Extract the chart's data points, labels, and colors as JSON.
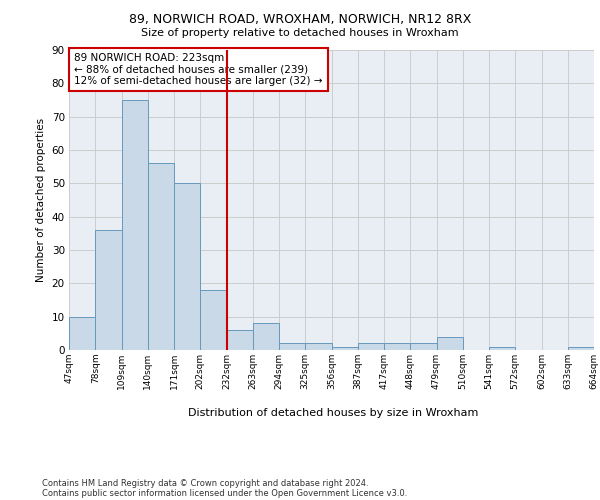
{
  "title1": "89, NORWICH ROAD, WROXHAM, NORWICH, NR12 8RX",
  "title2": "Size of property relative to detached houses in Wroxham",
  "xlabel": "Distribution of detached houses by size in Wroxham",
  "ylabel": "Number of detached properties",
  "bar_values": [
    10,
    36,
    75,
    56,
    50,
    18,
    6,
    8,
    2,
    2,
    1,
    2,
    2,
    2,
    4,
    0,
    1,
    0,
    0,
    1
  ],
  "bin_labels": [
    "47sqm",
    "78sqm",
    "109sqm",
    "140sqm",
    "171sqm",
    "202sqm",
    "232sqm",
    "263sqm",
    "294sqm",
    "325sqm",
    "356sqm",
    "387sqm",
    "417sqm",
    "448sqm",
    "479sqm",
    "510sqm",
    "541sqm",
    "572sqm",
    "602sqm",
    "633sqm",
    "664sqm"
  ],
  "bar_color": "#c9d9e8",
  "bar_edge_color": "#6699bb",
  "grid_color": "#cccccc",
  "bg_color": "#e8eef4",
  "vline_color": "#cc0000",
  "annotation_text": "89 NORWICH ROAD: 223sqm\n← 88% of detached houses are smaller (239)\n12% of semi-detached houses are larger (32) →",
  "annotation_box_color": "#cc0000",
  "ylim": [
    0,
    90
  ],
  "yticks": [
    0,
    10,
    20,
    30,
    40,
    50,
    60,
    70,
    80,
    90
  ],
  "footnote1": "Contains HM Land Registry data © Crown copyright and database right 2024.",
  "footnote2": "Contains public sector information licensed under the Open Government Licence v3.0."
}
